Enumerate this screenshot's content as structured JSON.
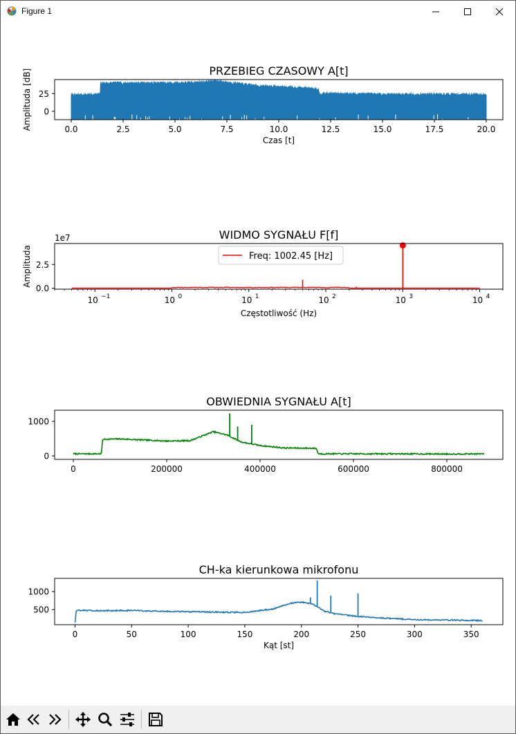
{
  "window": {
    "title": "Figure 1"
  },
  "toolbar": {
    "icons": [
      "home-icon",
      "back-icon",
      "forward-icon",
      "pan-icon",
      "zoom-icon",
      "configure-subplots-icon",
      "save-icon"
    ]
  },
  "chart_data": [
    {
      "type": "line",
      "title": "PRZEBIEG CZASOWY A[t]",
      "xlabel": "Czas [t]",
      "ylabel": "Amplituda [dB]",
      "xlim": [
        -0.8,
        20.8
      ],
      "ylim": [
        -12,
        45
      ],
      "x_ticks": [
        0.0,
        2.5,
        5.0,
        7.5,
        10.0,
        12.5,
        15.0,
        17.5,
        20.0
      ],
      "x_tick_labels": [
        "0.0",
        "2.5",
        "5.0",
        "7.5",
        "10.0",
        "12.5",
        "15.0",
        "17.5",
        "20.0"
      ],
      "y_ticks": [
        0,
        25
      ],
      "y_tick_labels": [
        "0",
        "25"
      ],
      "color": "#1f77b4",
      "envelope": {
        "x": [
          0.0,
          1.39,
          1.42,
          3.0,
          5.0,
          6.0,
          7.0,
          7.8,
          9.0,
          10.5,
          11.9,
          11.95,
          13.0,
          15.0,
          17.5,
          20.0
        ],
        "upper": [
          23,
          24,
          40,
          40,
          40,
          41,
          43,
          40,
          36,
          34,
          32,
          25,
          25,
          24,
          24,
          24
        ],
        "lower": [
          -11,
          -11,
          -11,
          -11,
          -11,
          -11,
          -11,
          -11,
          -11,
          -11,
          -11,
          -11,
          -11,
          -11,
          -11,
          -11
        ]
      }
    },
    {
      "type": "line",
      "title": "WIDMO SYGNAŁU F[f]",
      "xlabel": "Częstotliwość (Hz)",
      "ylabel": "Amplituda",
      "xscale": "log",
      "xlim": [
        0.03,
        20000
      ],
      "ylim": [
        -0.1,
        4.7
      ],
      "y_multiplier": "1e7",
      "x_ticks": [
        0.1,
        1,
        10,
        100,
        1000,
        10000
      ],
      "x_tick_labels": [
        [
          "10",
          "−1"
        ],
        [
          "10",
          "0"
        ],
        [
          "10",
          "1"
        ],
        [
          "10",
          "2"
        ],
        [
          "10",
          "3"
        ],
        [
          "10",
          "4"
        ]
      ],
      "y_ticks": [
        0.0,
        2.5
      ],
      "y_tick_labels": [
        "0.0",
        "2.5"
      ],
      "color": "#ff0000",
      "baseline_end": 10000,
      "peaks": [
        {
          "x": 50,
          "y": 0.9
        },
        {
          "x": 250,
          "y": 0.15
        },
        {
          "x": 1002.45,
          "y": 4.5
        }
      ],
      "marker": {
        "x": 1002.45,
        "y": 4.5
      },
      "legend": {
        "label": "Freq: 1002.45 [Hz]",
        "position": "upper center"
      }
    },
    {
      "type": "line",
      "title": "OBWIEDNIA SYGNAŁU A[t]",
      "xlabel": "",
      "ylabel": "",
      "xlim": [
        -40000,
        920000
      ],
      "ylim": [
        -100,
        1320
      ],
      "x_ticks": [
        0,
        200000,
        400000,
        600000,
        800000
      ],
      "x_tick_labels": [
        "0",
        "200000",
        "400000",
        "600000",
        "800000"
      ],
      "y_ticks": [
        0,
        1000
      ],
      "y_tick_labels": [
        "0",
        "1000"
      ],
      "color": "#008000",
      "x": [
        0,
        60000,
        63000,
        100000,
        150000,
        200000,
        250000,
        300000,
        330000,
        360000,
        400000,
        450000,
        520000,
        525000,
        600000,
        700000,
        800000,
        880000
      ],
      "y": [
        60,
        60,
        480,
        490,
        460,
        430,
        440,
        700,
        600,
        400,
        300,
        230,
        220,
        60,
        60,
        60,
        55,
        60
      ],
      "spikes": [
        {
          "x": 335000,
          "y": 1230
        },
        {
          "x": 352000,
          "y": 850
        },
        {
          "x": 382000,
          "y": 900
        }
      ]
    },
    {
      "type": "line",
      "title": "CH-ka kierunkowa mikrofonu",
      "xlabel": "Kąt [st]",
      "ylabel": "",
      "xlim": [
        -18,
        378
      ],
      "ylim": [
        80,
        1370
      ],
      "x_ticks": [
        0,
        50,
        100,
        150,
        200,
        250,
        300,
        350
      ],
      "x_tick_labels": [
        "0",
        "50",
        "100",
        "150",
        "200",
        "250",
        "300",
        "350"
      ],
      "y_ticks": [
        500,
        1000
      ],
      "y_tick_labels": [
        "500",
        "1000"
      ],
      "color": "#1f77b4",
      "x": [
        0,
        1,
        3,
        25,
        50,
        75,
        100,
        125,
        150,
        175,
        190,
        200,
        210,
        220,
        230,
        250,
        275,
        300,
        325,
        350,
        360
      ],
      "y": [
        150,
        450,
        480,
        470,
        475,
        455,
        440,
        430,
        420,
        520,
        680,
        710,
        650,
        460,
        380,
        310,
        260,
        220,
        210,
        200,
        190
      ],
      "spikes": [
        {
          "x": 208,
          "y": 840
        },
        {
          "x": 214,
          "y": 1310
        },
        {
          "x": 226,
          "y": 890
        },
        {
          "x": 250,
          "y": 950
        }
      ]
    }
  ]
}
